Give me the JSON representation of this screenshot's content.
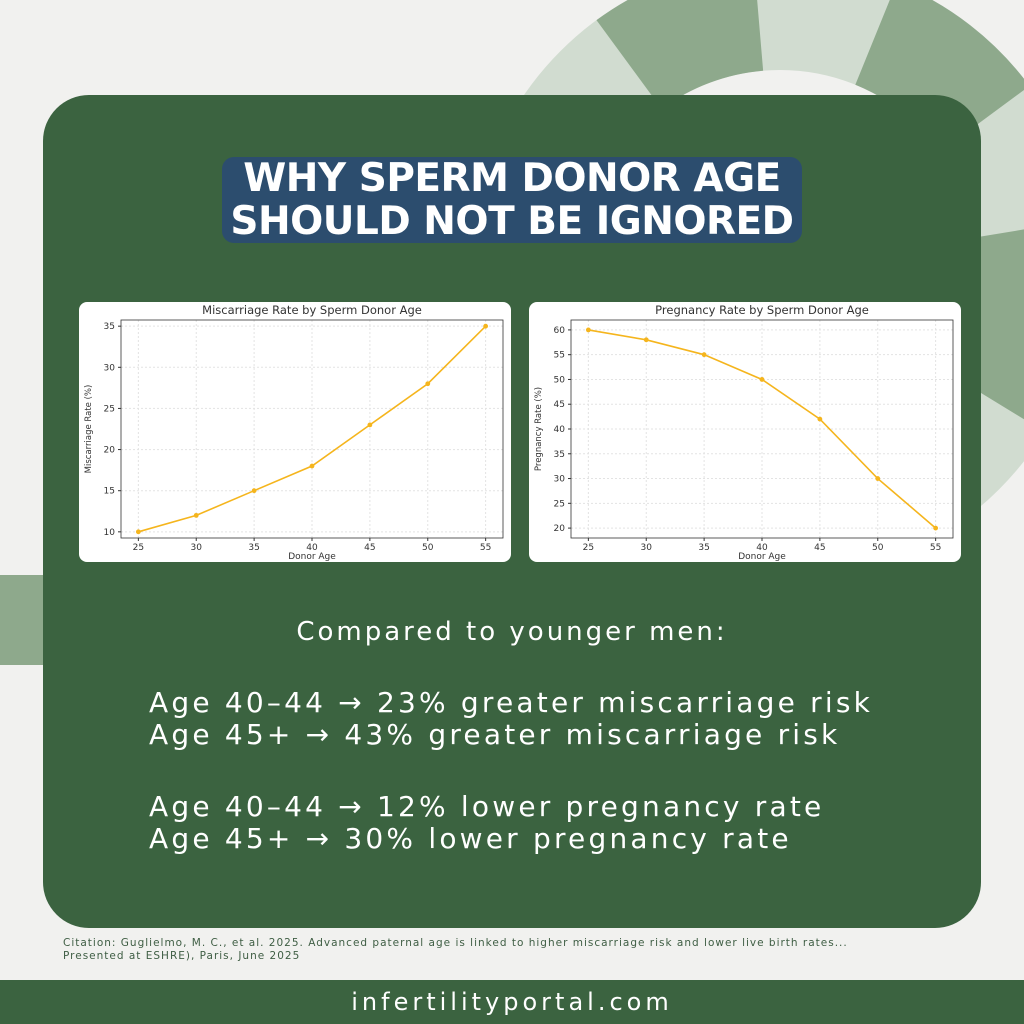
{
  "title_lines": [
    "WHY SPERM DONOR AGE",
    "SHOULD NOT BE IGNORED"
  ],
  "chart_data": [
    {
      "type": "line",
      "title": "Miscarriage Rate by Sperm Donor Age",
      "xlabel": "Donor Age",
      "ylabel": "Miscarriage Rate (%)",
      "x": [
        25,
        30,
        35,
        40,
        45,
        50,
        55
      ],
      "values": [
        10,
        12,
        15,
        18,
        23,
        28,
        35
      ],
      "xticks": [
        "25",
        "30",
        "35",
        "40",
        "45",
        "50",
        "55"
      ],
      "yticks": [
        "10",
        "15",
        "20",
        "25",
        "30",
        "35"
      ],
      "ylim": [
        9.25,
        35.75
      ],
      "xlim": [
        23.5,
        56.5
      ],
      "grid": true,
      "color": "#f5b51d"
    },
    {
      "type": "line",
      "title": "Pregnancy Rate by Sperm Donor Age",
      "xlabel": "Donor Age",
      "ylabel": "Pregnancy Rate (%)",
      "x": [
        25,
        30,
        35,
        40,
        45,
        50,
        55
      ],
      "values": [
        60,
        58,
        55,
        50,
        42,
        30,
        20
      ],
      "xticks": [
        "25",
        "30",
        "35",
        "40",
        "45",
        "50",
        "55"
      ],
      "yticks": [
        "20",
        "25",
        "30",
        "35",
        "40",
        "45",
        "50",
        "55",
        "60"
      ],
      "ylim": [
        18,
        62
      ],
      "xlim": [
        23.5,
        56.5
      ],
      "grid": true,
      "color": "#f5b51d"
    }
  ],
  "compare_heading": "Compared to younger men:",
  "stats": {
    "miscarriage": [
      "Age 40–44 → 23% greater miscarriage risk",
      "Age 45+ → 43% greater miscarriage risk"
    ],
    "pregnancy": [
      "Age 40–44 → 12% lower pregnancy rate",
      "Age 45+ → 30% lower pregnancy rate"
    ]
  },
  "citation": "Citation: Guglielmo, M. C., et al. 2025. Advanced paternal age is linked to higher miscarriage risk and lower live birth rates... Presented at ESHRE), Paris, June 2025",
  "footer": "infertilityportal.com",
  "colors": {
    "background": "#f1f1ef",
    "card": "#3b6340",
    "title_bg": "#2c4d6e",
    "accent_line": "#f5b51d",
    "deco": "#8ea98c"
  }
}
